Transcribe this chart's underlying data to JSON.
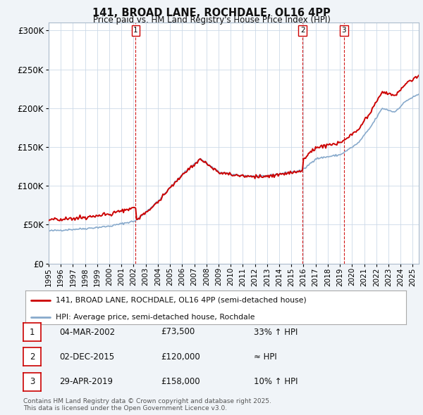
{
  "title": "141, BROAD LANE, ROCHDALE, OL16 4PP",
  "subtitle": "Price paid vs. HM Land Registry's House Price Index (HPI)",
  "ylim": [
    0,
    310000
  ],
  "xlim_start": 1995.0,
  "xlim_end": 2025.5,
  "yticks": [
    0,
    50000,
    100000,
    150000,
    200000,
    250000,
    300000
  ],
  "ytick_labels": [
    "£0",
    "£50K",
    "£100K",
    "£150K",
    "£200K",
    "£250K",
    "£300K"
  ],
  "transactions": [
    {
      "date": 2002.17,
      "price": 73500,
      "label": "1"
    },
    {
      "date": 2015.92,
      "price": 120000,
      "label": "2"
    },
    {
      "date": 2019.33,
      "price": 158000,
      "label": "3"
    }
  ],
  "vline_color": "#cc0000",
  "hpi_line_color": "#88aacc",
  "price_line_color": "#cc0000",
  "legend_label_price": "141, BROAD LANE, ROCHDALE, OL16 4PP (semi-detached house)",
  "legend_label_hpi": "HPI: Average price, semi-detached house, Rochdale",
  "table_rows": [
    {
      "num": "1",
      "date": "04-MAR-2002",
      "price": "£73,500",
      "relation": "33% ↑ HPI"
    },
    {
      "num": "2",
      "date": "02-DEC-2015",
      "price": "£120,000",
      "relation": "≈ HPI"
    },
    {
      "num": "3",
      "date": "29-APR-2019",
      "price": "£158,000",
      "relation": "10% ↑ HPI"
    }
  ],
  "footer": "Contains HM Land Registry data © Crown copyright and database right 2025.\nThis data is licensed under the Open Government Licence v3.0.",
  "background_color": "#f0f4f8",
  "plot_bg_color": "#ffffff",
  "grid_color": "#ccd9e8"
}
